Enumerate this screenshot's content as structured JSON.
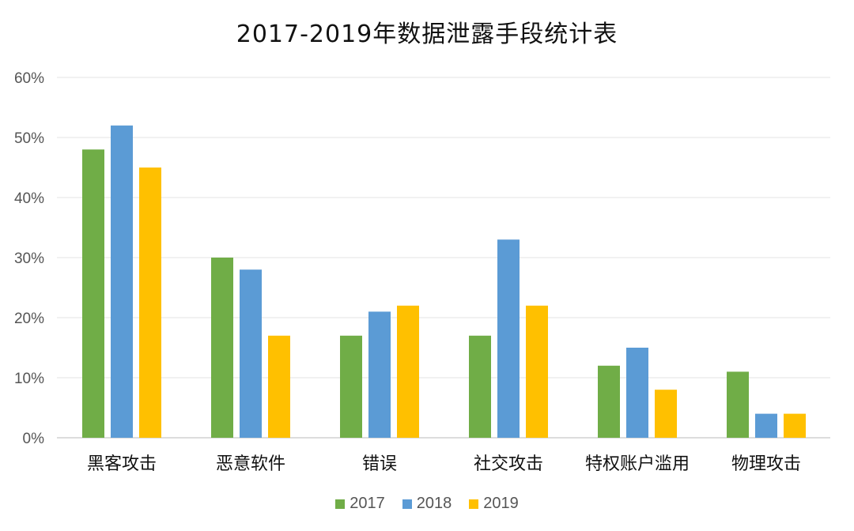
{
  "chart_data": {
    "type": "bar",
    "title": "2017-2019年数据泄露手段统计表",
    "categories": [
      "黑客攻击",
      "恶意软件",
      "错误",
      "社交攻击",
      "特权账户滥用",
      "物理攻击"
    ],
    "series": [
      {
        "name": "2017",
        "color": "#70AD47",
        "values": [
          48,
          30,
          17,
          17,
          12,
          11
        ]
      },
      {
        "name": "2018",
        "color": "#5B9BD5",
        "values": [
          52,
          28,
          21,
          33,
          15,
          4
        ]
      },
      {
        "name": "2019",
        "color": "#FFC000",
        "values": [
          45,
          17,
          22,
          22,
          8,
          4
        ]
      }
    ],
    "ylim": [
      0,
      60
    ],
    "yticks": [
      "0%",
      "10%",
      "20%",
      "30%",
      "40%",
      "50%",
      "60%"
    ],
    "ytick_values": [
      0,
      10,
      20,
      30,
      40,
      50,
      60
    ],
    "grid": true,
    "legend": "bottom-center"
  }
}
